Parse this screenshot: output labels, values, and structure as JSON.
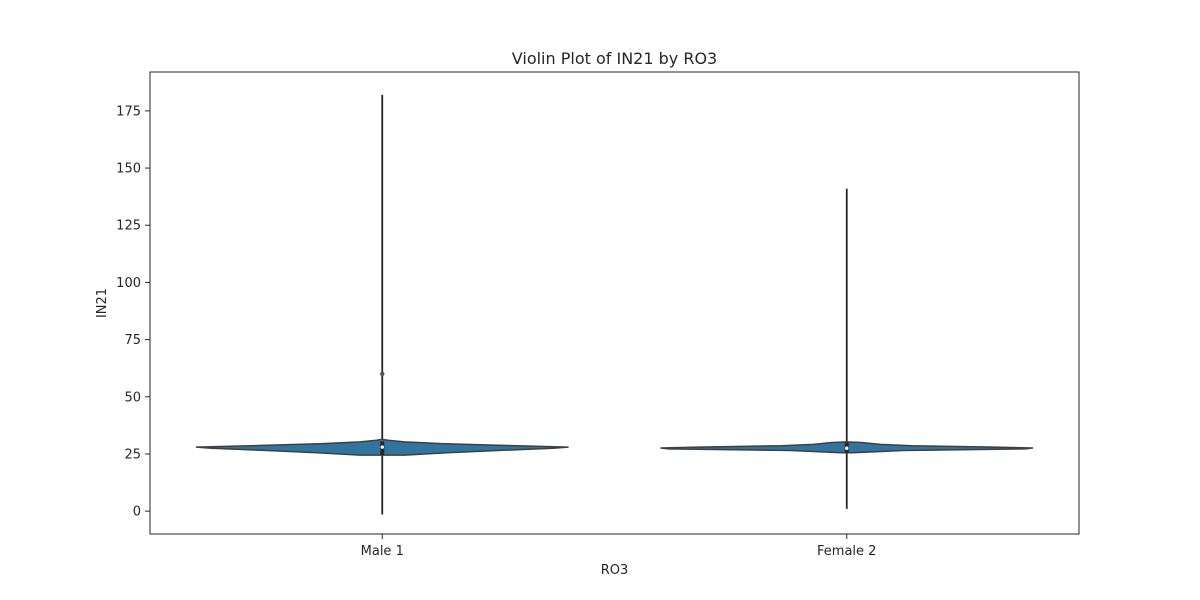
{
  "chart_data": {
    "type": "violin",
    "title": "Violin Plot of IN21 by RO3",
    "xlabel": "RO3",
    "ylabel": "IN21",
    "categories": [
      "Male 1",
      "Female 2"
    ],
    "ylim": [
      -10,
      192
    ],
    "yticks": [
      0,
      25,
      50,
      75,
      100,
      125,
      150,
      175
    ],
    "grid": false,
    "violin_color": "#3274a1",
    "line_color": "#3f3f3f",
    "violins": [
      {
        "category": "Male 1",
        "min": -1.5,
        "q1": 24.5,
        "median": 28,
        "q3": 30.5,
        "max": 182,
        "outliers": [
          60
        ],
        "density": [
          [
            24.5,
            0.12
          ],
          [
            25.5,
            0.35
          ],
          [
            26.5,
            0.62
          ],
          [
            27.5,
            0.92
          ],
          [
            28.0,
            1.0
          ],
          [
            28.8,
            0.62
          ],
          [
            29.5,
            0.32
          ],
          [
            30.3,
            0.12
          ],
          [
            31.0,
            0.03
          ],
          [
            31.4,
            0.0
          ]
        ]
      },
      {
        "category": "Female 2",
        "min": 1,
        "q1": 25.5,
        "median": 27.5,
        "q3": 30,
        "max": 141,
        "outliers": [],
        "density": [
          [
            25.5,
            0.03
          ],
          [
            26.5,
            0.3
          ],
          [
            27.2,
            0.96
          ],
          [
            27.6,
            1.0
          ],
          [
            28.0,
            0.8
          ],
          [
            28.6,
            0.35
          ],
          [
            29.2,
            0.18
          ],
          [
            30.0,
            0.08
          ],
          [
            30.3,
            0.0
          ]
        ]
      }
    ]
  }
}
